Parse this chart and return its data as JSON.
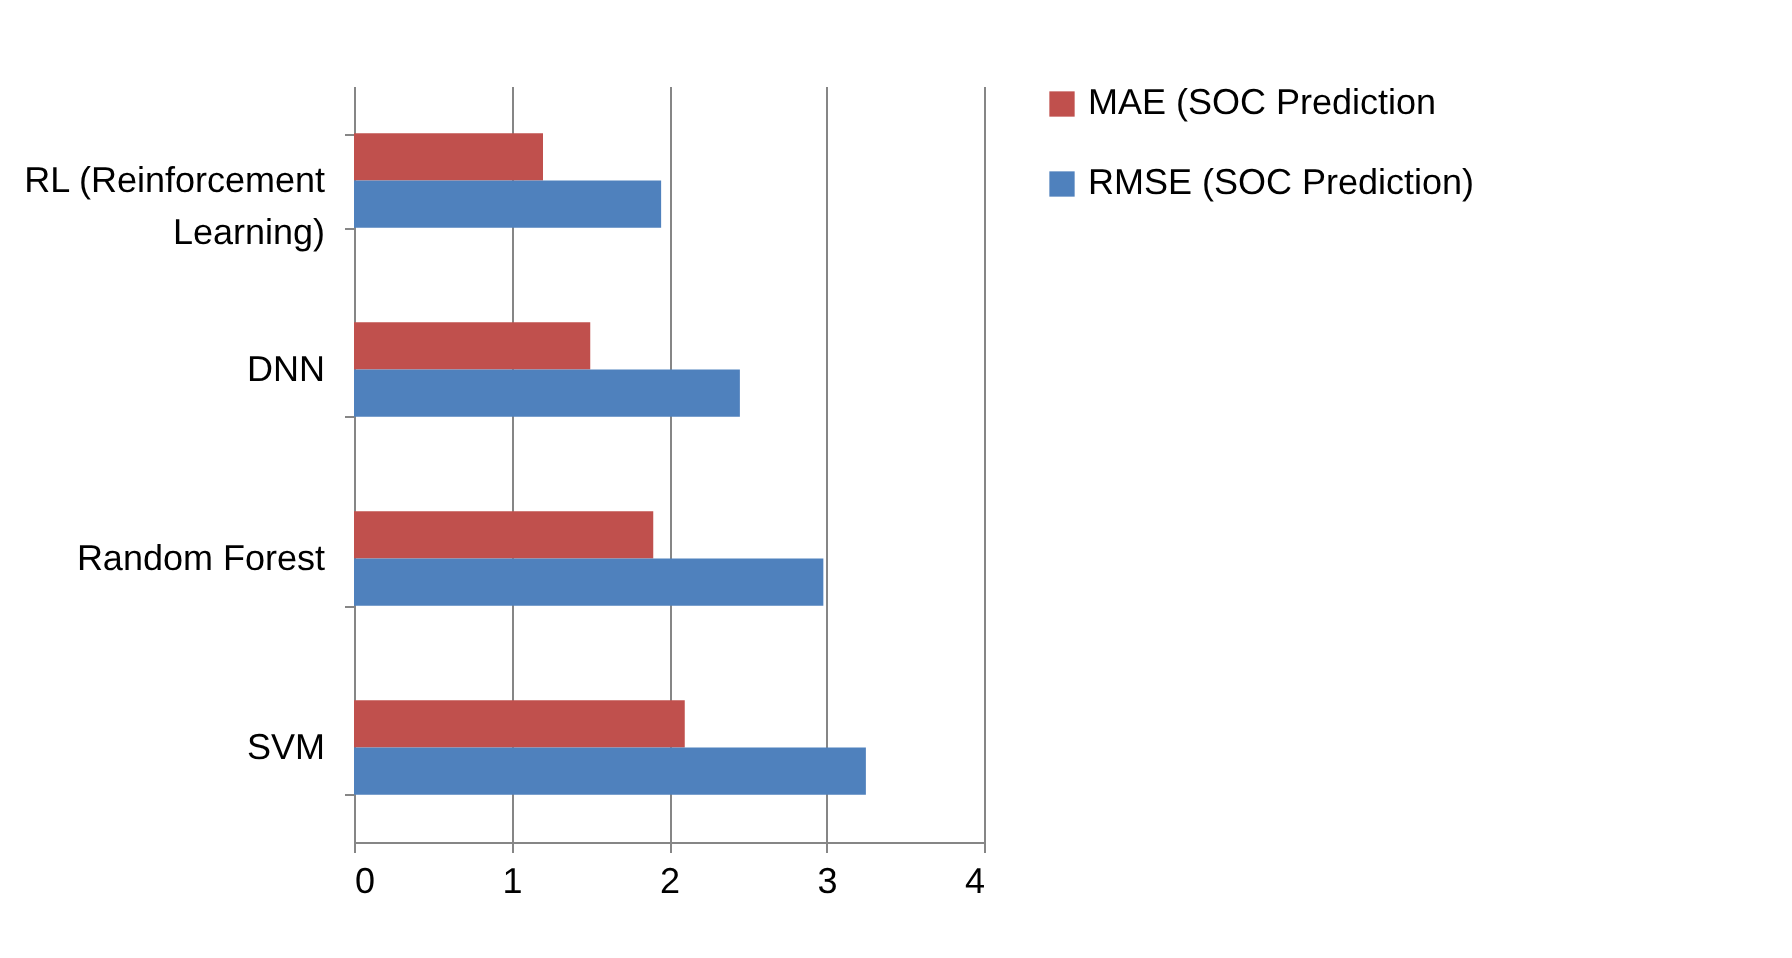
{
  "chart_data": {
    "type": "bar",
    "orientation": "horizontal",
    "categories": [
      "RL (Reinforcement Learning)",
      "DNN",
      "Random Forest",
      "SVM"
    ],
    "series": [
      {
        "name": "MAE (SOC Prediction",
        "color": "#c0504d",
        "values": [
          1.2,
          1.5,
          1.9,
          2.1
        ]
      },
      {
        "name": "RMSE (SOC Prediction)",
        "color": "#4f81bd",
        "values": [
          1.95,
          2.45,
          2.98,
          3.25
        ]
      }
    ],
    "xlim": [
      0,
      4
    ],
    "xticks": [
      0,
      1,
      2,
      3,
      4
    ],
    "grid": "x",
    "legend": "right"
  }
}
